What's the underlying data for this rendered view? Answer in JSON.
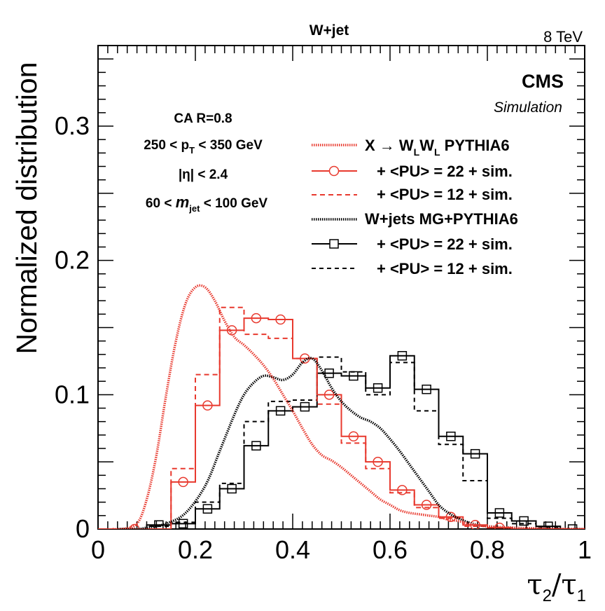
{
  "title": "W+jet",
  "energy": "8 TeV",
  "experiment": "CMS",
  "experiment_sub": "Simulation",
  "selection": {
    "line1": "CA R=0.8",
    "line2_pre": "250 < p",
    "line2_sub": "T",
    "line2_post": " < 350 GeV",
    "line3": "|η| < 2.4",
    "line4_pre": "60 < ",
    "line4_m": "m",
    "line4_sub": "jet",
    "line4_post": " < 100 GeV"
  },
  "legend": [
    {
      "pre": "X → W",
      "sub1": "L",
      "mid": "W",
      "sub2": "L",
      "post": " PYTHIA6"
    },
    {
      "text": "+ <PU> = 22 + sim."
    },
    {
      "text": "+ <PU> = 12 + sim."
    },
    {
      "text": "W+jets MG+PYTHIA6"
    },
    {
      "text": "+ <PU> = 22 + sim."
    },
    {
      "text": "+ <PU> = 12 + sim."
    }
  ],
  "colors": {
    "signal": "#e8392e",
    "background": "#000000"
  },
  "chart_data": {
    "type": "line",
    "title": "W+jet",
    "xlabel": "τ2/τ1",
    "ylabel": "Normalized distribution",
    "xlim": [
      0,
      1
    ],
    "ylim": [
      0,
      0.36
    ],
    "x_ticks": [
      "0",
      "0.2",
      "0.4",
      "0.6",
      "0.8",
      "1"
    ],
    "y_ticks": [
      "0",
      "0.1",
      "0.2",
      "0.3"
    ],
    "bin_edges": [
      0.0,
      0.05,
      0.1,
      0.15,
      0.2,
      0.25,
      0.3,
      0.35,
      0.4,
      0.45,
      0.5,
      0.55,
      0.6,
      0.65,
      0.7,
      0.75,
      0.8,
      0.85,
      0.9,
      0.95,
      1.0
    ],
    "series": [
      {
        "name": "X → WLWL PYTHIA6",
        "style": "smooth-dotted",
        "color": "#e8392e",
        "x": [
          0.03,
          0.05,
          0.08,
          0.1,
          0.12,
          0.14,
          0.16,
          0.18,
          0.2,
          0.22,
          0.24,
          0.26,
          0.28,
          0.3,
          0.32,
          0.34,
          0.36,
          0.38,
          0.4,
          0.42,
          0.44,
          0.46,
          0.48,
          0.5,
          0.52,
          0.54,
          0.56,
          0.58,
          0.6,
          0.62,
          0.64,
          0.66,
          0.68,
          0.7,
          0.72,
          0.74,
          0.76,
          0.78,
          0.8,
          0.85,
          0.9,
          0.95,
          1.0
        ],
        "y": [
          0.0,
          0.0,
          0.004,
          0.022,
          0.055,
          0.1,
          0.14,
          0.168,
          0.18,
          0.18,
          0.17,
          0.155,
          0.143,
          0.137,
          0.13,
          0.122,
          0.112,
          0.1,
          0.088,
          0.075,
          0.063,
          0.055,
          0.051,
          0.046,
          0.04,
          0.034,
          0.028,
          0.022,
          0.018,
          0.014,
          0.012,
          0.011,
          0.01,
          0.009,
          0.007,
          0.006,
          0.004,
          0.003,
          0.002,
          0.001,
          0.0005,
          0.0,
          0.0
        ]
      },
      {
        "name": "+ <PU> = 22 + sim.",
        "style": "hist-circle",
        "color": "#e8392e",
        "values": [
          0.0,
          0.0,
          0.0,
          0.035,
          0.092,
          0.148,
          0.157,
          0.156,
          0.127,
          0.1,
          0.069,
          0.05,
          0.029,
          0.018,
          0.009,
          0.003,
          0.001,
          0.0,
          0.0,
          0.0
        ]
      },
      {
        "name": "+ <PU> = 12 + sim.",
        "style": "hist-dashed",
        "color": "#e8392e",
        "values": [
          0.0,
          0.0,
          0.0,
          0.045,
          0.115,
          0.165,
          0.145,
          0.142,
          0.127,
          0.093,
          0.064,
          0.045,
          0.027,
          0.016,
          0.008,
          0.002,
          0.001,
          0.0,
          0.0,
          0.0
        ]
      },
      {
        "name": "W+jets MG+PYTHIA6",
        "style": "smooth-dotted",
        "color": "#000000",
        "x": [
          0.04,
          0.08,
          0.1,
          0.14,
          0.18,
          0.22,
          0.25,
          0.28,
          0.3,
          0.32,
          0.34,
          0.36,
          0.38,
          0.4,
          0.42,
          0.44,
          0.46,
          0.48,
          0.5,
          0.52,
          0.54,
          0.56,
          0.58,
          0.6,
          0.62,
          0.64,
          0.66,
          0.68,
          0.7,
          0.72,
          0.74,
          0.76,
          0.78,
          0.8,
          0.85,
          0.9,
          1.0
        ],
        "y": [
          0.0,
          0.0,
          0.001,
          0.004,
          0.012,
          0.032,
          0.058,
          0.085,
          0.1,
          0.109,
          0.114,
          0.113,
          0.111,
          0.115,
          0.124,
          0.127,
          0.118,
          0.105,
          0.095,
          0.088,
          0.083,
          0.08,
          0.075,
          0.067,
          0.058,
          0.048,
          0.038,
          0.028,
          0.018,
          0.012,
          0.008,
          0.005,
          0.003,
          0.002,
          0.001,
          0.0,
          0.0
        ]
      },
      {
        "name": "+ <PU> = 22 + sim.",
        "style": "hist-square",
        "color": "#000000",
        "values": [
          0.0,
          0.0,
          0.003,
          0.004,
          0.015,
          0.03,
          0.062,
          0.088,
          0.091,
          0.116,
          0.114,
          0.105,
          0.129,
          0.104,
          0.069,
          0.056,
          0.012,
          0.006,
          0.002,
          0.0
        ]
      },
      {
        "name": "+ <PU> = 12 + sim.",
        "style": "hist-dashed",
        "color": "#000000",
        "values": [
          0.0,
          0.0,
          0.002,
          0.005,
          0.02,
          0.034,
          0.08,
          0.095,
          0.096,
          0.128,
          0.117,
          0.1,
          0.124,
          0.088,
          0.063,
          0.036,
          0.008,
          0.004,
          0.001,
          0.0
        ]
      }
    ]
  }
}
